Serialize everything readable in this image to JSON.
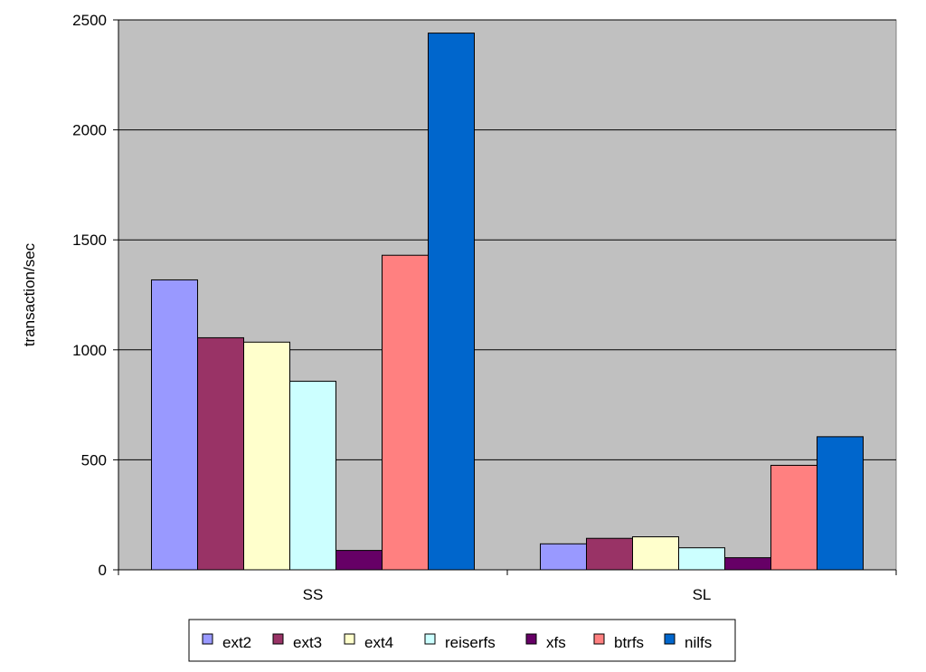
{
  "chart_data": {
    "type": "bar",
    "title": "",
    "xlabel": "",
    "ylabel": "transaction/sec",
    "ylim": [
      0,
      2500
    ],
    "yticks": [
      0,
      500,
      1000,
      1500,
      2000,
      2500
    ],
    "grid": true,
    "legend_position": "bottom",
    "plot_background": "#c0c0c0",
    "categories": [
      "SS",
      "SL"
    ],
    "series": [
      {
        "name": "ext2",
        "color": "#9999ff",
        "values": [
          1318,
          118
        ]
      },
      {
        "name": "ext3",
        "color": "#993366",
        "values": [
          1055,
          143
        ]
      },
      {
        "name": "ext4",
        "color": "#ffffcc",
        "values": [
          1035,
          150
        ]
      },
      {
        "name": "reiserfs",
        "color": "#ccffff",
        "values": [
          857,
          100
        ]
      },
      {
        "name": "xfs",
        "color": "#660066",
        "values": [
          88,
          55
        ]
      },
      {
        "name": "btrfs",
        "color": "#ff8080",
        "values": [
          1430,
          475
        ]
      },
      {
        "name": "nilfs",
        "color": "#0066cc",
        "values": [
          2440,
          605
        ]
      }
    ]
  }
}
